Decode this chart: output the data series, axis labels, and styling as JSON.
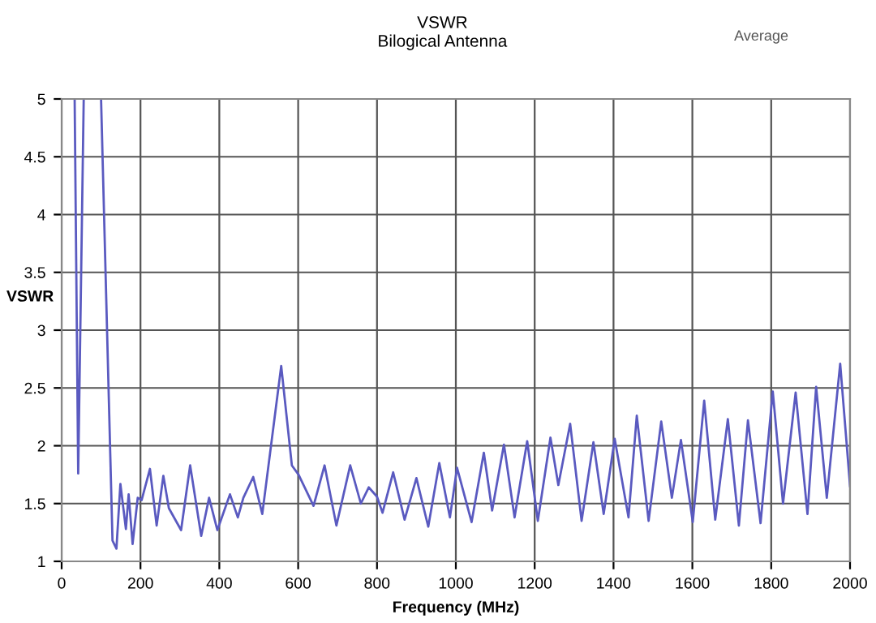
{
  "chart_data": {
    "type": "line",
    "title": "VSWR",
    "subtitle": "Bilogical Antenna",
    "xlabel": "Frequency (MHz)",
    "ylabel": "VSWR",
    "annotations": [
      "Average"
    ],
    "xlim": [
      0,
      2000
    ],
    "xticks": [
      0,
      200,
      400,
      600,
      800,
      1000,
      1200,
      1400,
      1600,
      1800,
      2000
    ],
    "ylim": [
      1,
      5
    ],
    "yticks": [
      1,
      1.5,
      2,
      2.5,
      3,
      3.5,
      4,
      4.5,
      5
    ],
    "grid": true,
    "legend": false,
    "marker": "none",
    "line_style": "solid",
    "series": [
      {
        "color": "#5a5ac0",
        "x": [
          33,
          42,
          56,
          78,
          100,
          129,
          139,
          149,
          163,
          170,
          180,
          193,
          203,
          224,
          241,
          258,
          272,
          303,
          326,
          354,
          374,
          395,
          427,
          447,
          461,
          486,
          509,
          557,
          584,
          601,
          639,
          667,
          697,
          732,
          759,
          779,
          800,
          814,
          841,
          870,
          900,
          930,
          958,
          985,
          1003,
          1040,
          1071,
          1092,
          1122,
          1149,
          1181,
          1208,
          1240,
          1260,
          1290,
          1319,
          1349,
          1375,
          1403,
          1438,
          1459,
          1489,
          1521,
          1548,
          1571,
          1601,
          1630,
          1658,
          1690,
          1718,
          1741,
          1773,
          1804,
          1830,
          1862,
          1892,
          1914,
          1941,
          1975,
          2000
        ],
        "values": [
          5,
          1.76,
          5,
          null,
          5,
          1.18,
          1.11,
          1.67,
          1.28,
          1.58,
          1.15,
          1.55,
          1.53,
          1.8,
          1.31,
          1.74,
          1.46,
          1.27,
          1.83,
          1.22,
          1.55,
          1.27,
          1.58,
          1.38,
          1.55,
          1.73,
          1.41,
          2.69,
          1.83,
          1.75,
          1.48,
          1.83,
          1.31,
          1.83,
          1.5,
          1.64,
          1.56,
          1.42,
          1.77,
          1.36,
          1.72,
          1.3,
          1.85,
          1.38,
          1.81,
          1.34,
          1.94,
          1.44,
          2.01,
          1.38,
          2.04,
          1.35,
          2.07,
          1.66,
          2.19,
          1.35,
          2.03,
          1.41,
          2.06,
          1.38,
          2.26,
          1.35,
          2.21,
          1.55,
          2.05,
          1.34,
          2.39,
          1.36,
          2.23,
          1.31,
          2.22,
          1.33,
          2.47,
          1.5,
          2.46,
          1.41,
          2.51,
          1.55,
          2.71,
          1.65
        ]
      }
    ]
  }
}
